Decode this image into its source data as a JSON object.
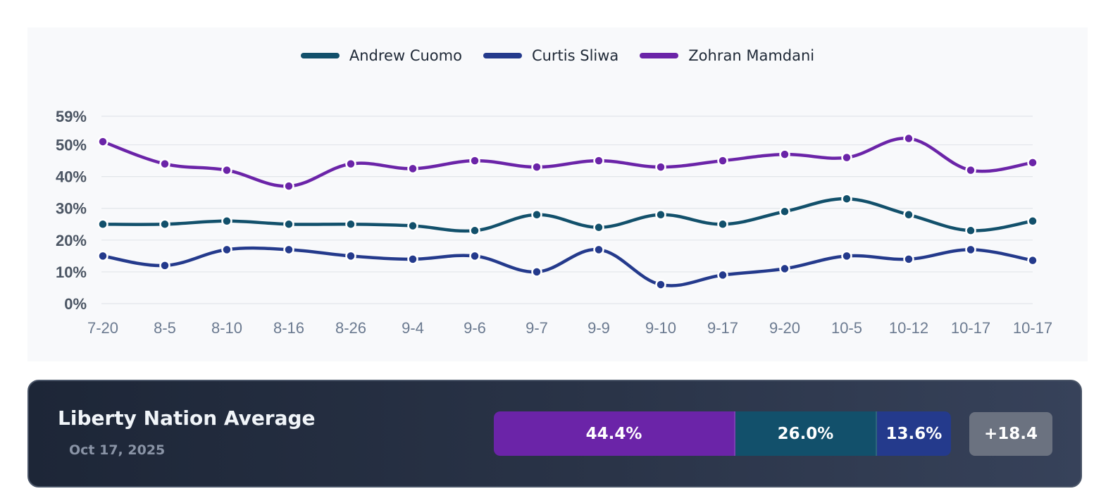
{
  "chart_data": {
    "type": "line",
    "categories": [
      "7-20",
      "8-5",
      "8-10",
      "8-16",
      "8-26",
      "9-4",
      "9-6",
      "9-7",
      "9-9",
      "9-10",
      "9-17",
      "9-20",
      "10-5",
      "10-12",
      "10-17",
      "10-17"
    ],
    "y_ticks": [
      "0%",
      "10%",
      "20%",
      "30%",
      "40%",
      "50%",
      "59%"
    ],
    "ylim": [
      0,
      59
    ],
    "grid": true,
    "legend_position": "top-center",
    "title": "",
    "xlabel": "",
    "ylabel": "",
    "series": [
      {
        "name": "Andrew Cuomo",
        "color": "#12506b",
        "values": [
          25,
          25,
          26,
          25,
          25,
          24.5,
          23,
          28,
          24,
          28,
          25,
          29,
          33,
          28,
          23,
          26
        ]
      },
      {
        "name": "Curtis Sliwa",
        "color": "#243a8c",
        "values": [
          15,
          12,
          17,
          17,
          15,
          14,
          15,
          10,
          17,
          6,
          9,
          11,
          15,
          14,
          17,
          13.6
        ]
      },
      {
        "name": "Zohran Mamdani",
        "color": "#6b24a8",
        "values": [
          51,
          44,
          42,
          37,
          44,
          42.5,
          45,
          43,
          45,
          43,
          45,
          47,
          46,
          52,
          42,
          44.4
        ]
      }
    ]
  },
  "summary": {
    "title": "Liberty Nation Average",
    "date": "Oct 17, 2025",
    "segments": [
      {
        "label": "44.4%",
        "value": 44.4,
        "color": "#6b24a8"
      },
      {
        "label": "26.0%",
        "value": 26.0,
        "color": "#12506b"
      },
      {
        "label": "13.6%",
        "value": 13.6,
        "color": "#243a8c"
      }
    ],
    "margin": "+18.4"
  }
}
